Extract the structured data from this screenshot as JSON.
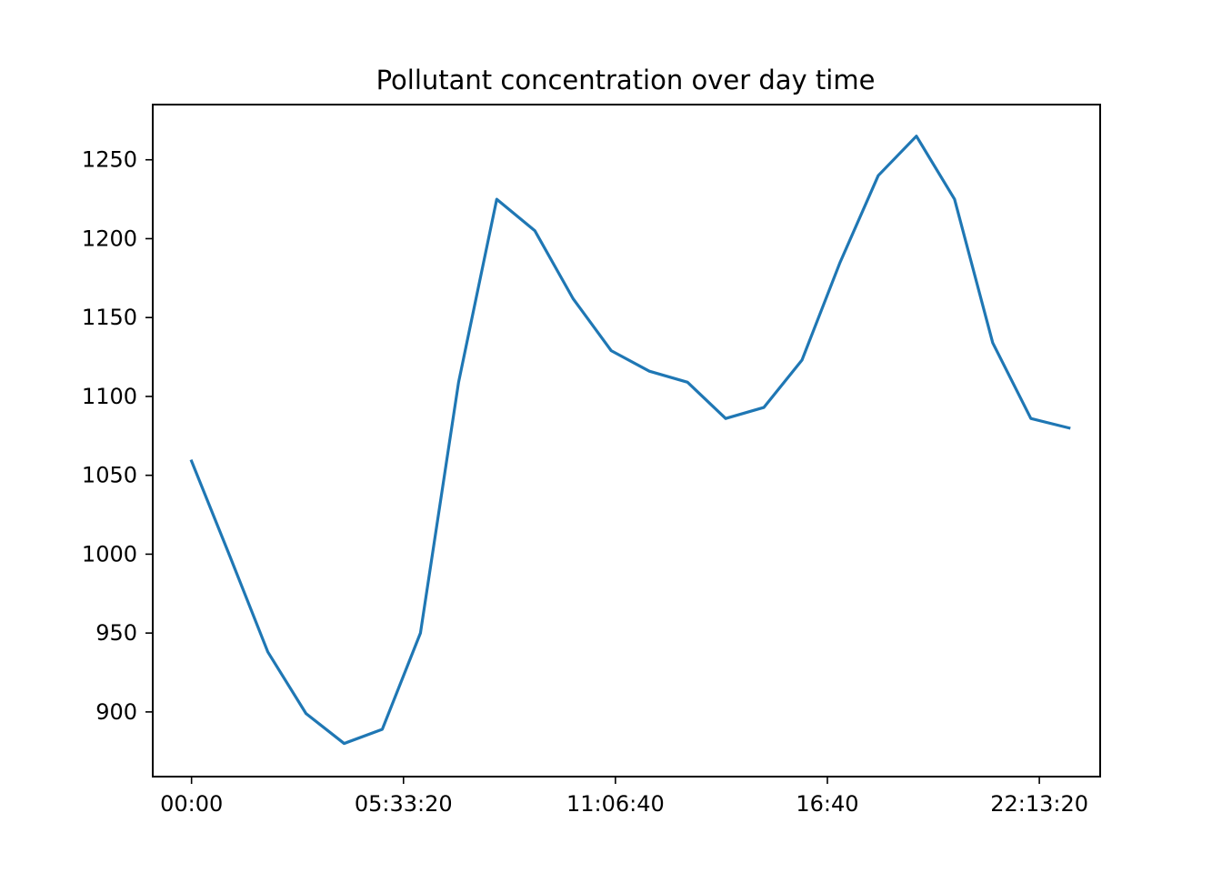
{
  "chart_data": {
    "type": "line",
    "title": "Pollutant concentration over day time",
    "xlabel": "",
    "ylabel": "",
    "grid": false,
    "legend": "none",
    "x_unit": "time of day",
    "x": [
      "00:00",
      "01:00",
      "02:00",
      "03:00",
      "04:00",
      "05:00",
      "06:00",
      "07:00",
      "08:00",
      "09:00",
      "10:00",
      "11:00",
      "12:00",
      "13:00",
      "14:00",
      "15:00",
      "16:00",
      "17:00",
      "18:00",
      "19:00",
      "20:00",
      "21:00",
      "22:00",
      "23:00"
    ],
    "series": [
      {
        "color": "#1f77b4",
        "values": [
          1059,
          999,
          938,
          899,
          880,
          889,
          950,
          1109,
          1225,
          1205,
          1162,
          1129,
          1116,
          1109,
          1086,
          1093,
          1123,
          1185,
          1240,
          1265,
          1225,
          1134,
          1086,
          1080
        ]
      }
    ],
    "xlim": [
      "-01:01:00",
      "23:49:00"
    ],
    "ylim": [
      859,
      1285
    ],
    "x_ticks": [
      "00:00",
      "05:33:20",
      "11:06:40",
      "16:40",
      "22:13:20"
    ],
    "y_ticks": [
      900,
      950,
      1000,
      1050,
      1100,
      1150,
      1200,
      1250
    ]
  }
}
